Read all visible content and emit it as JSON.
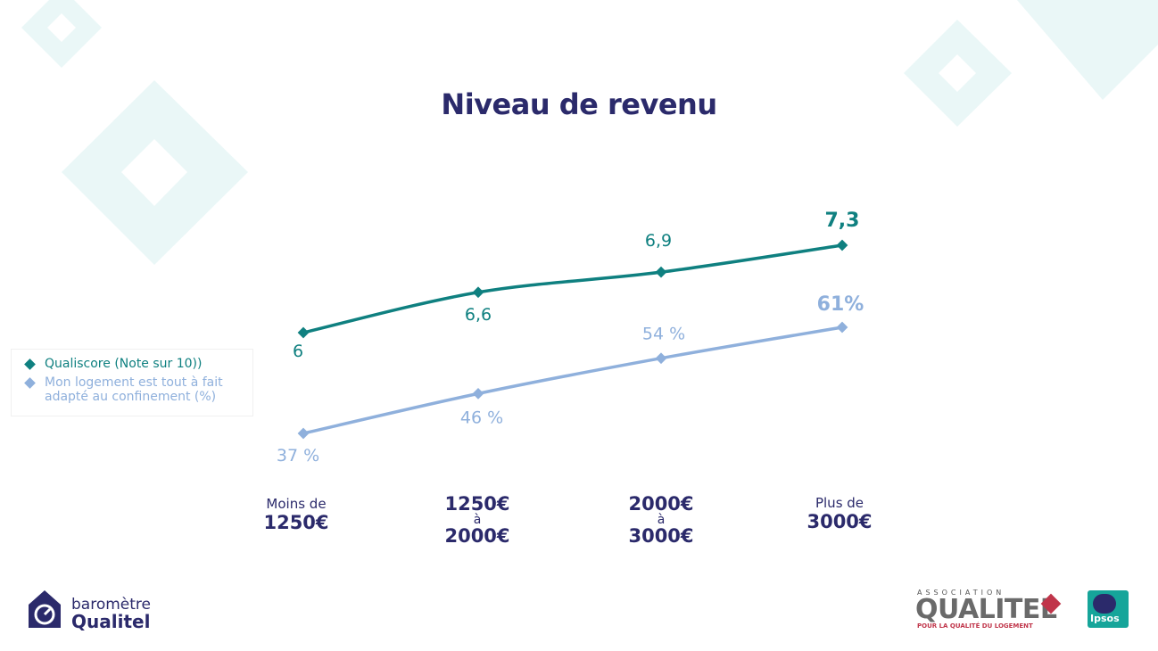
{
  "chart_data": {
    "type": "line",
    "title": "Niveau de revenu",
    "categories": [
      {
        "line1": "Moins de",
        "line2": "1250€",
        "line3": ""
      },
      {
        "line1": "1250€",
        "line2": "à",
        "line3": "2000€"
      },
      {
        "line1": "2000€",
        "line2": "à",
        "line3": "3000€"
      },
      {
        "line1": "Plus de",
        "line2": "3000€",
        "line3": ""
      }
    ],
    "series": [
      {
        "name": "Qualiscore (Note sur 10))",
        "values": [
          6,
          6.6,
          6.9,
          7.3
        ],
        "labels": [
          "6",
          "6,6",
          "6,9",
          "7,3"
        ],
        "color": "#0f8080"
      },
      {
        "name": "Mon logement est tout à fait adapté au confinement (%)",
        "values": [
          37,
          46,
          54,
          61
        ],
        "labels": [
          "37 %",
          "46 %",
          "54 %",
          "61%"
        ],
        "color": "#8fb0dc"
      }
    ],
    "legend_position": "left",
    "grid": false
  },
  "brand": {
    "barometre_line1": "baromètre",
    "barometre_line2": "Qualitel",
    "qualitel_assoc": "ASSOCIATION",
    "qualitel_name": "QUALITEL",
    "qualitel_tagline": "POUR LA QUALITÉ DU LOGEMENT",
    "ipsos": "Ipsos"
  },
  "colors": {
    "title": "#2b2a6b",
    "decor": "#eaf7f7"
  }
}
